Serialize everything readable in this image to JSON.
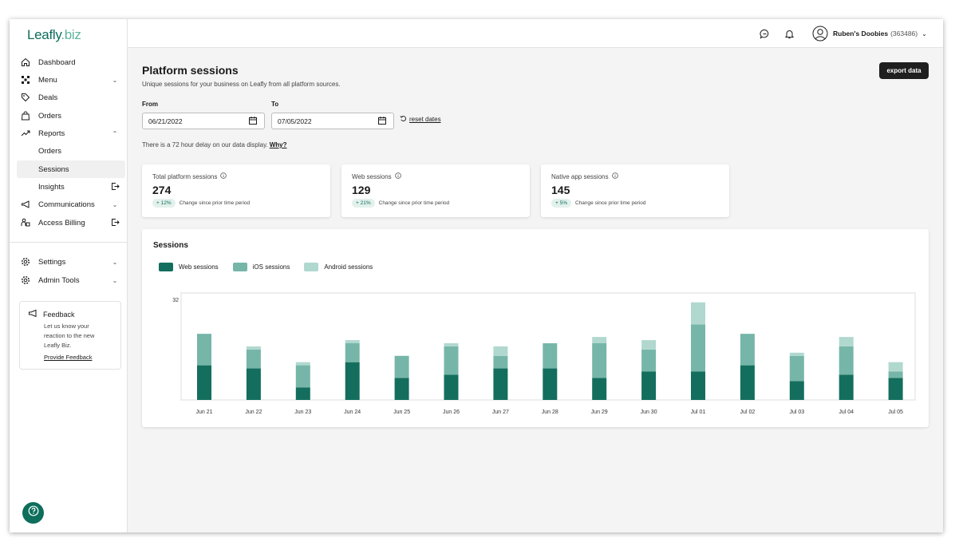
{
  "logo": {
    "main": "Leafly",
    "suffix": ".biz"
  },
  "sidebar": {
    "items": [
      {
        "label": "Dashboard",
        "icon": "home-icon"
      },
      {
        "label": "Menu",
        "icon": "menu-grid-icon",
        "chevron": "down"
      },
      {
        "label": "Deals",
        "icon": "tag-icon"
      },
      {
        "label": "Orders",
        "icon": "bag-icon"
      },
      {
        "label": "Reports",
        "icon": "trend-icon",
        "chevron": "up"
      },
      {
        "label": "Orders",
        "sub": true
      },
      {
        "label": "Sessions",
        "sub": true,
        "active": true
      },
      {
        "label": "Insights",
        "sub": true,
        "icon_right": "external-link-icon"
      },
      {
        "label": "Communications",
        "icon": "megaphone-icon",
        "chevron": "down"
      },
      {
        "label": "Access Billing",
        "icon": "billing-icon",
        "icon_right": "external-link-icon"
      },
      {
        "label": "Settings",
        "icon": "gear-icon",
        "chevron": "down"
      },
      {
        "label": "Admin Tools",
        "icon": "gear-icon",
        "chevron": "down"
      }
    ],
    "feedback": {
      "title": "Feedback",
      "body": "Let us know your reaction to the new Leafly Biz.",
      "link": "Provide Feedback"
    }
  },
  "topbar": {
    "account_name": "Ruben's Doobies",
    "account_id": "(363486)"
  },
  "main": {
    "title": "Platform sessions",
    "subtitle": "Unique sessions for your business on Leafly from all platform sources.",
    "export_label": "export data",
    "from_label": "From",
    "to_label": "To",
    "from_value": "06/21/2022",
    "to_value": "07/05/2022",
    "reset_label": "reset dates",
    "delay_text": "There is a 72 hour delay on our data display.",
    "why_label": "Why?"
  },
  "stats": [
    {
      "label": "Total platform sessions",
      "value": "274",
      "change": "+ 12%",
      "change_text": "Change since prior time period"
    },
    {
      "label": "Web sessions",
      "value": "129",
      "change": "+ 21%",
      "change_text": "Change since prior time period"
    },
    {
      "label": "Native app sessions",
      "value": "145",
      "change": "+ 5%",
      "change_text": "Change since prior time period"
    }
  ],
  "colors": {
    "web": "#146e5d",
    "ios": "#76b6a9",
    "android": "#b0d8cf",
    "brand": "#0d6e5b"
  },
  "chart_data": {
    "type": "bar",
    "stacked": true,
    "title": "Sessions",
    "categories": [
      "Jun 21",
      "Jun 22",
      "Jun 23",
      "Jun 24",
      "Jun 25",
      "Jun 26",
      "Jun 27",
      "Jun 28",
      "Jun 29",
      "Jun 30",
      "Jul 01",
      "Jul 02",
      "Jul 03",
      "Jul 04",
      "Jul 05"
    ],
    "series": [
      {
        "name": "Web sessions",
        "values": [
          11,
          10,
          4,
          12,
          7,
          8,
          10,
          10,
          7,
          9,
          9,
          11,
          6,
          8,
          7
        ]
      },
      {
        "name": "iOS sessions",
        "values": [
          10,
          6,
          7,
          6,
          7,
          9,
          4,
          8,
          11,
          7,
          15,
          10,
          8,
          9,
          2
        ]
      },
      {
        "name": "Android sessions",
        "values": [
          0,
          1,
          1,
          1,
          0,
          1,
          3,
          0,
          2,
          3,
          7,
          0,
          1,
          3,
          3
        ]
      }
    ],
    "y_ticks": [
      32
    ],
    "ylim": [
      0,
      32
    ],
    "legend": "top-left",
    "grid": false
  }
}
